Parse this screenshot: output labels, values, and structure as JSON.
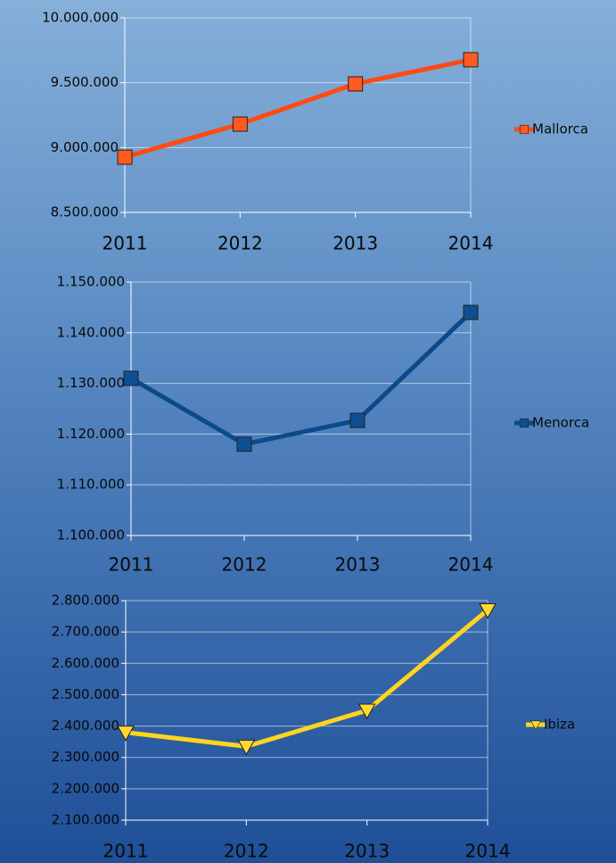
{
  "chart_data": [
    {
      "type": "line",
      "categories": [
        "2011",
        "2012",
        "2013",
        "2014"
      ],
      "series": [
        {
          "name": "Mallorca",
          "color": "#ff4a12",
          "marker_color": "#ff5a1f",
          "marker": "square",
          "values": [
            8926000,
            9181000,
            9491000,
            9677000
          ]
        }
      ],
      "ylim": [
        8500000,
        10000000
      ],
      "yticks": [
        {
          "value": 8500000,
          "label": "8.500.000"
        },
        {
          "value": 9000000,
          "label": "9.000.000"
        },
        {
          "value": 9500000,
          "label": "9.500.000"
        },
        {
          "value": 10000000,
          "label": "10.000.000"
        }
      ],
      "grid": true,
      "legend": "right"
    },
    {
      "type": "line",
      "categories": [
        "2011",
        "2012",
        "2013",
        "2014"
      ],
      "series": [
        {
          "name": "Menorca",
          "color": "#0b4a8a",
          "marker_color": "#0e4f92",
          "marker": "square",
          "values": [
            1131000,
            1118000,
            1122700,
            1144000
          ]
        }
      ],
      "ylim": [
        1100000,
        1150000
      ],
      "yticks": [
        {
          "value": 1100000,
          "label": "1.100.000"
        },
        {
          "value": 1110000,
          "label": "1.110.000"
        },
        {
          "value": 1120000,
          "label": "1.120.000"
        },
        {
          "value": 1130000,
          "label": "1.130.000"
        },
        {
          "value": 1140000,
          "label": "1.140.000"
        },
        {
          "value": 1150000,
          "label": "1.150.000"
        }
      ],
      "grid": true,
      "legend": "right"
    },
    {
      "type": "line",
      "categories": [
        "2011",
        "2012",
        "2013",
        "2014"
      ],
      "series": [
        {
          "name": "Ibiza",
          "color": "#ffd420",
          "marker_color": "#ffd930",
          "marker": "triangle-down",
          "values": [
            2380000,
            2335000,
            2450000,
            2770000
          ]
        }
      ],
      "ylim": [
        2100000,
        2800000
      ],
      "yticks": [
        {
          "value": 2100000,
          "label": "2.100.000"
        },
        {
          "value": 2200000,
          "label": "2.200.000"
        },
        {
          "value": 2300000,
          "label": "2.300.000"
        },
        {
          "value": 2400000,
          "label": "2.400.000"
        },
        {
          "value": 2500000,
          "label": "2.500.000"
        },
        {
          "value": 2600000,
          "label": "2.600.000"
        },
        {
          "value": 2700000,
          "label": "2.700.000"
        },
        {
          "value": 2800000,
          "label": "2.800.000"
        }
      ],
      "grid": true,
      "legend": "right"
    }
  ]
}
